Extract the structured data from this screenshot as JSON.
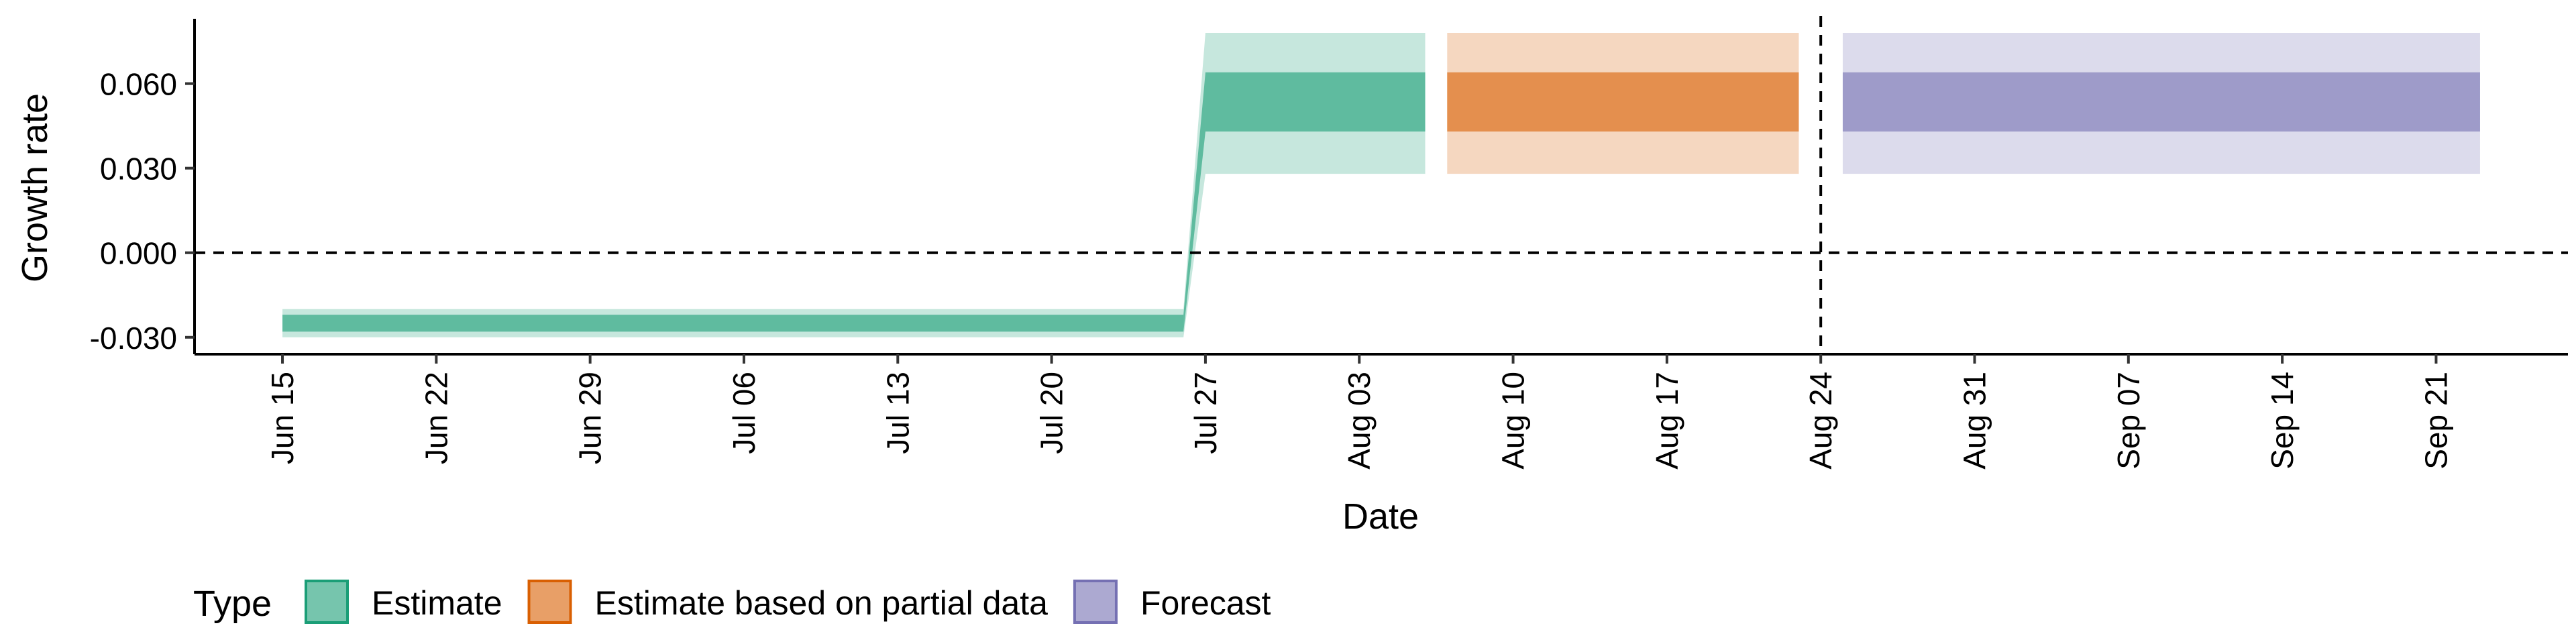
{
  "chart_data": {
    "type": "area",
    "xlabel": "Date",
    "ylabel": "Growth rate",
    "x_ticks": [
      "Jun 15",
      "Jun 22",
      "Jun 29",
      "Jul 06",
      "Jul 13",
      "Jul 20",
      "Jul 27",
      "Aug 03",
      "Aug 10",
      "Aug 17",
      "Aug 24",
      "Aug 31",
      "Sep 07",
      "Sep 14",
      "Sep 21"
    ],
    "y_ticks": [
      "-0.030",
      "0.000",
      "0.030",
      "0.060"
    ],
    "xlim": [
      "2020-06-10",
      "2020-09-26"
    ],
    "ylim": [
      -0.036,
      0.083
    ],
    "hline": 0,
    "vline": "2020-08-23",
    "grid": false,
    "legend": {
      "title": "Type",
      "position": "bottom-left",
      "entries": [
        "Estimate",
        "Estimate based on partial data",
        "Forecast"
      ]
    },
    "colors": {
      "Estimate": "#1b9e77",
      "Estimate based on partial data": "#d95f02",
      "Forecast": "#7570b3"
    },
    "series": [
      {
        "name": "Estimate",
        "segments": [
          {
            "x": [
              "2020-06-14",
              "2020-07-25"
            ],
            "inner": [
              -0.028,
              -0.022
            ],
            "outer": [
              -0.03,
              -0.02
            ]
          },
          {
            "x": [
              "2020-07-26",
              "2020-08-05"
            ],
            "inner": [
              0.043,
              0.064
            ],
            "outer": [
              0.028,
              0.078
            ]
          }
        ]
      },
      {
        "name": "Estimate based on partial data",
        "segments": [
          {
            "x": [
              "2020-08-06",
              "2020-08-22"
            ],
            "inner": [
              0.043,
              0.064
            ],
            "outer": [
              0.028,
              0.078
            ]
          }
        ]
      },
      {
        "name": "Forecast",
        "segments": [
          {
            "x": [
              "2020-08-24",
              "2020-09-22"
            ],
            "inner": [
              0.043,
              0.064
            ],
            "outer": [
              0.028,
              0.078
            ]
          }
        ]
      }
    ]
  }
}
